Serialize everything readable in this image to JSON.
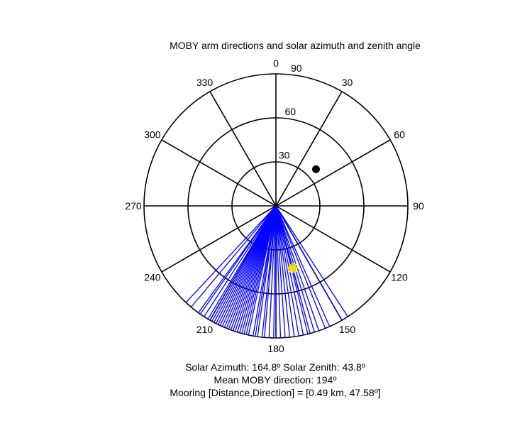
{
  "chart_data": {
    "type": "polar",
    "title": "MOBY arm directions and solar azimuth and zenith angle",
    "angle_ticks": [
      "0",
      "30",
      "60",
      "90",
      "120",
      "150",
      "180",
      "210",
      "240",
      "270",
      "300",
      "330"
    ],
    "radial_ticks": [
      "30",
      "60",
      "90"
    ],
    "radial_max": 90,
    "grid": true,
    "series": [
      {
        "kind": "lines",
        "color": "#0000ff",
        "directions_deg": [
          147,
          150,
          156,
          158,
          161,
          163,
          165,
          166,
          168,
          170,
          172,
          174,
          176,
          178,
          180,
          181,
          183,
          185,
          186,
          188,
          189,
          190,
          192,
          193,
          194,
          195,
          196,
          197,
          198,
          199,
          200,
          201,
          202,
          203,
          204,
          205,
          206,
          207,
          208,
          209,
          210,
          211,
          213,
          215,
          216,
          220,
          223
        ],
        "length_zenith": 90
      },
      {
        "kind": "segment",
        "color": "#0000ff",
        "direction_deg": 164.8,
        "zenith_from": 30,
        "zenith_to": 60
      },
      {
        "kind": "point",
        "marker": "star",
        "color": "#ffe000",
        "azimuth_deg": 164.8,
        "zenith_deg": 43.8
      },
      {
        "kind": "point",
        "marker": "circle",
        "color": "#000000",
        "azimuth_deg": 47.58,
        "zenith_deg": 37
      }
    ]
  },
  "caption": {
    "line1": "Solar Azimuth: 164.8º   Solar Zenith: 43.8º",
    "line2": "Mean MOBY direction: 194º",
    "line3": "Mooring [Distance,Direction] = [0.49 km, 47.58º]"
  }
}
